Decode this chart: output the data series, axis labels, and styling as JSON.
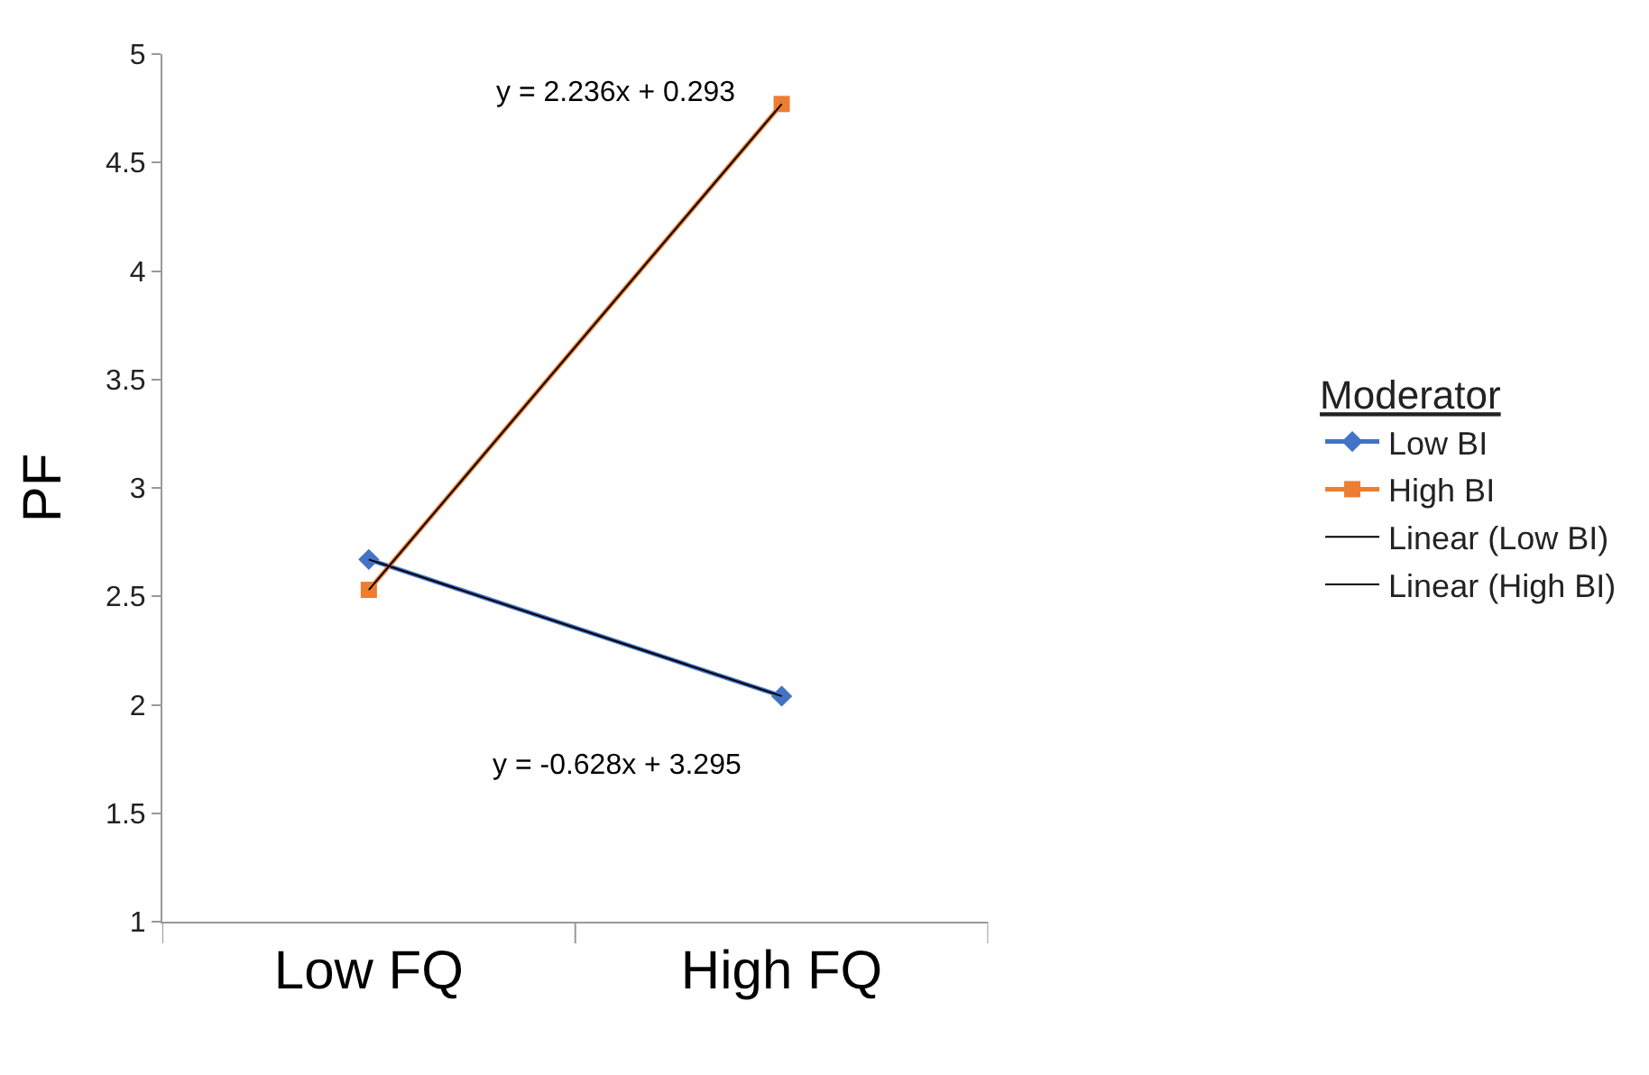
{
  "chart_data": {
    "type": "line",
    "ylabel": "PF",
    "categories": [
      "Low FQ",
      "High FQ"
    ],
    "ylim": [
      1,
      5
    ],
    "yticks": [
      1,
      1.5,
      2,
      2.5,
      3,
      3.5,
      4,
      4.5,
      5
    ],
    "legend": "right",
    "legend_title": "Moderator",
    "series": [
      {
        "name": "Low BI",
        "color": "#4472c4",
        "values": [
          2.67,
          2.04
        ],
        "marker": "diamond"
      },
      {
        "name": "High BI",
        "color": "#ed7d31",
        "values": [
          2.53,
          4.77
        ],
        "marker": "square"
      },
      {
        "name": "Linear (Low BI)",
        "color": "#000000",
        "values": [
          2.67,
          2.04
        ],
        "marker": "none"
      },
      {
        "name": "Linear (High BI)",
        "color": "#000000",
        "values": [
          2.53,
          4.77
        ],
        "marker": "none"
      }
    ],
    "annotations": [
      "y = 2.236x + 0.293",
      "y = -0.628x + 3.295"
    ]
  }
}
